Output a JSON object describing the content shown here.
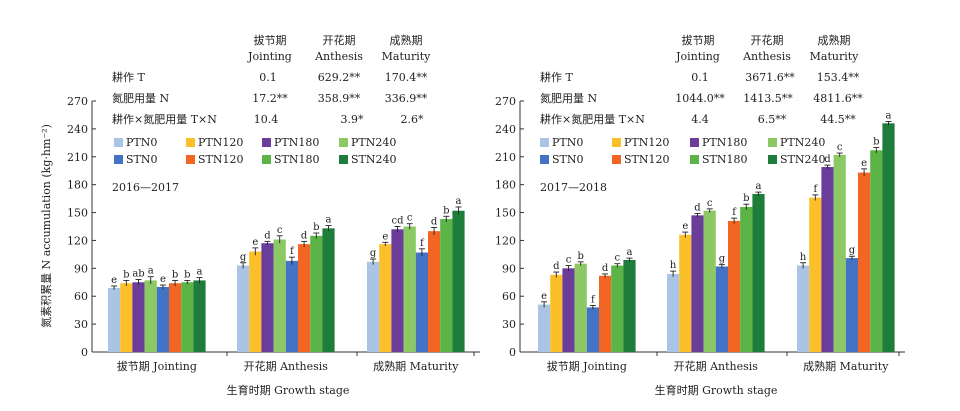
{
  "stage_headers": {
    "jointing": [
      "拔节期",
      "Jointing"
    ],
    "anthesis": [
      "开花期",
      "Anthesis"
    ],
    "maturity": [
      "成熟期",
      "Maturity"
    ]
  },
  "stat_labels": [
    "耕作 T",
    "氮肥用量 N",
    "耕作×氮肥用量 T×N"
  ],
  "ylabel": "氮素积累量 N accumulation (kg·hm⁻²)",
  "xlabel": "生育时期 Growth stage",
  "colors": {
    "PTN0": "#a9c4e4",
    "PTN120": "#fbbf2a",
    "PTN180": "#6a3d9a",
    "PTN240": "#8cc864",
    "STN0": "#4472c4",
    "STN120": "#f26522",
    "STN180": "#5cb446",
    "STN240": "#1e7d3a"
  },
  "chart_data": [
    {
      "type": "bar",
      "title": "2016—2017",
      "categories": [
        "拔节期 Jointing",
        "开花期 Anthesis",
        "成熟期 Maturity"
      ],
      "ylim": [
        0,
        270
      ],
      "yticks": [
        0,
        30,
        60,
        90,
        120,
        150,
        180,
        210,
        240,
        270
      ],
      "stats": [
        [
          "0.1",
          "629.2**",
          "170.4**"
        ],
        [
          "17.2**",
          "358.9**",
          "336.9**"
        ],
        [
          "10.4",
          "3.9*",
          "2.6*"
        ]
      ],
      "series": [
        {
          "name": "PTN0",
          "values": [
            69,
            93,
            97
          ],
          "errors": [
            2,
            3,
            3
          ],
          "letters": [
            "e",
            "g",
            "g"
          ]
        },
        {
          "name": "PTN120",
          "values": [
            74,
            108,
            116
          ],
          "errors": [
            3,
            4,
            2
          ],
          "letters": [
            "b",
            "e",
            "e"
          ]
        },
        {
          "name": "PTN180",
          "values": [
            75,
            117,
            132
          ],
          "errors": [
            3,
            2,
            3
          ],
          "letters": [
            "ab",
            "d",
            "cd"
          ]
        },
        {
          "name": "PTN240",
          "values": [
            77,
            121,
            135
          ],
          "errors": [
            4,
            4,
            3
          ],
          "letters": [
            "a",
            "c",
            "c"
          ]
        },
        {
          "name": "STN0",
          "values": [
            70,
            98,
            107
          ],
          "errors": [
            2,
            4,
            4
          ],
          "letters": [
            "e",
            "f",
            "f"
          ]
        },
        {
          "name": "STN120",
          "values": [
            74,
            116,
            130
          ],
          "errors": [
            3,
            3,
            4
          ],
          "letters": [
            "b",
            "d",
            "d"
          ]
        },
        {
          "name": "STN180",
          "values": [
            75,
            125,
            143
          ],
          "errors": [
            2,
            3,
            3
          ],
          "letters": [
            "b",
            "b",
            "b"
          ]
        },
        {
          "name": "STN240",
          "values": [
            77,
            133,
            152
          ],
          "errors": [
            3,
            3,
            4
          ],
          "letters": [
            "a",
            "a",
            "a"
          ]
        }
      ]
    },
    {
      "type": "bar",
      "title": "2017—2018",
      "categories": [
        "拔节期 Jointing",
        "开花期 Anthesis",
        "成熟期 Maturity"
      ],
      "ylim": [
        0,
        270
      ],
      "yticks": [
        0,
        30,
        60,
        90,
        120,
        150,
        180,
        210,
        240,
        270
      ],
      "stats": [
        [
          "0.1",
          "3671.6**",
          "153.4**"
        ],
        [
          "1044.0**",
          "1413.5**",
          "4811.6**"
        ],
        [
          "4.4",
          "6.5**",
          "44.5**"
        ]
      ],
      "series": [
        {
          "name": "PTN0",
          "values": [
            51,
            84,
            93
          ],
          "errors": [
            3,
            3,
            3
          ],
          "letters": [
            "e",
            "h",
            "h"
          ]
        },
        {
          "name": "PTN120",
          "values": [
            83,
            126,
            166
          ],
          "errors": [
            3,
            3,
            3
          ],
          "letters": [
            "d",
            "e",
            "f"
          ]
        },
        {
          "name": "PTN180",
          "values": [
            90,
            147,
            199
          ],
          "errors": [
            3,
            2,
            2
          ],
          "letters": [
            "c",
            "d",
            "d"
          ]
        },
        {
          "name": "PTN240",
          "values": [
            95,
            152,
            212
          ],
          "errors": [
            2,
            2,
            2
          ],
          "letters": [
            "b",
            "c",
            "c"
          ]
        },
        {
          "name": "STN0",
          "values": [
            48,
            92,
            101
          ],
          "errors": [
            2,
            2,
            2
          ],
          "letters": [
            "f",
            "g",
            "g"
          ]
        },
        {
          "name": "STN120",
          "values": [
            82,
            141,
            193
          ],
          "errors": [
            2,
            3,
            4
          ],
          "letters": [
            "d",
            "f",
            "e"
          ]
        },
        {
          "name": "STN180",
          "values": [
            93,
            156,
            217
          ],
          "errors": [
            2,
            3,
            3
          ],
          "letters": [
            "c",
            "b",
            "b"
          ]
        },
        {
          "name": "STN240",
          "values": [
            99,
            170,
            246
          ],
          "errors": [
            2,
            2,
            2
          ],
          "letters": [
            "a",
            "a",
            "a"
          ]
        }
      ]
    }
  ]
}
